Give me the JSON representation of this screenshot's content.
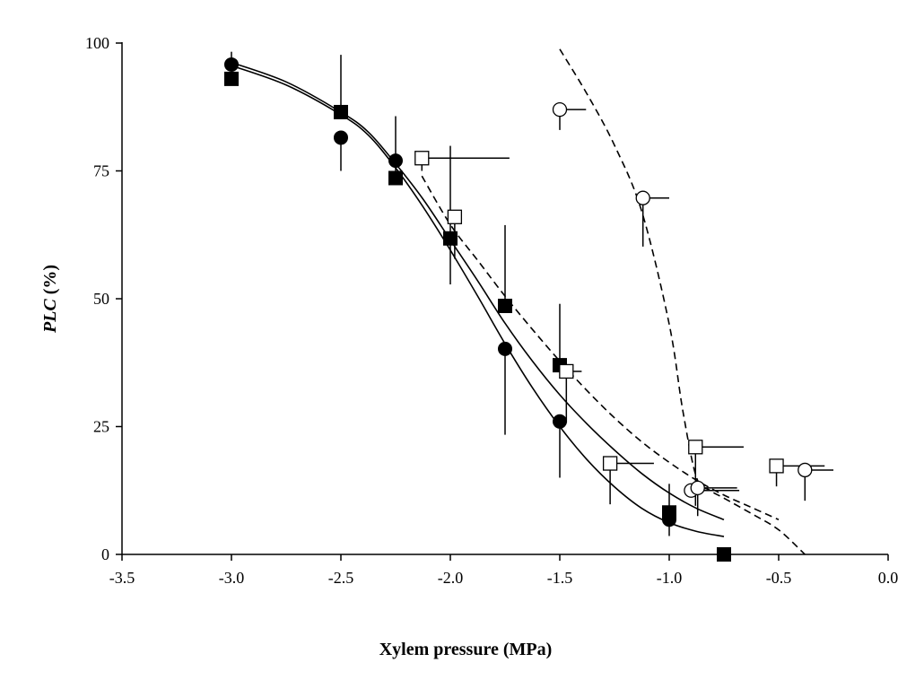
{
  "chart_data": {
    "type": "scatter",
    "title": "",
    "xlabel": "Xylem pressure (MPa)",
    "ylabel_italic": "PLC",
    "ylabel_rest": " (%)",
    "xlim": [
      -3.5,
      0.0
    ],
    "ylim": [
      0,
      100
    ],
    "xticks": [
      -3.5,
      -3.0,
      -2.5,
      -2.0,
      -1.5,
      -1.0,
      -0.5,
      0.0
    ],
    "xtick_labels": [
      "-3.5",
      "-3.0",
      "-2.5",
      "-2.0",
      "-1.5",
      "-1.0",
      "-0.5",
      "0.0"
    ],
    "yticks": [
      0,
      25,
      50,
      75,
      100
    ],
    "ytick_labels": [
      "0",
      "25",
      "50",
      "75",
      "100"
    ],
    "grid": false,
    "legend": "none",
    "series": [
      {
        "marker": "filled-circle",
        "points": [
          {
            "x": -3.0,
            "y": 95.8,
            "yerr_up": 2.5
          },
          {
            "x": -2.5,
            "y": 81.5,
            "yerr_down": 6.5
          },
          {
            "x": -2.25,
            "y": 77.0
          },
          {
            "x": -1.75,
            "y": 40.2,
            "yerr_down": 16.8
          },
          {
            "x": -1.5,
            "y": 26.0,
            "yerr_down": 11.0
          },
          {
            "x": -1.0,
            "y": 6.8,
            "yerr_down": 3.2
          }
        ]
      },
      {
        "marker": "filled-square",
        "points": [
          {
            "x": -3.0,
            "y": 93.0
          },
          {
            "x": -2.5,
            "y": 86.5,
            "yerr_up": 11.2
          },
          {
            "x": -2.25,
            "y": 73.6,
            "yerr_up": 12.1
          },
          {
            "x": -2.0,
            "y": 61.8,
            "yerr_up": 18.1,
            "yerr_down": 9.0
          },
          {
            "x": -1.75,
            "y": 48.6,
            "yerr_up": 15.8
          },
          {
            "x": -1.5,
            "y": 37.0,
            "yerr_up": 12.0
          },
          {
            "x": -1.0,
            "y": 8.2,
            "yerr_up": 5.6
          },
          {
            "x": -0.75,
            "y": 0.0
          }
        ]
      },
      {
        "marker": "open-square",
        "points": [
          {
            "x": -2.13,
            "y": 77.5,
            "xerr_right": 0.4,
            "yerr_down": 2.5
          },
          {
            "x": -1.98,
            "y": 66.0,
            "yerr_down": 8.2
          },
          {
            "x": -1.47,
            "y": 35.8,
            "xerr_right": 0.07,
            "yerr_down": 10.0
          },
          {
            "x": -1.27,
            "y": 17.8,
            "xerr_right": 0.2,
            "yerr_down": 8.0
          },
          {
            "x": -0.88,
            "y": 21.0,
            "xerr_right": 0.22,
            "yerr_down": 11.5
          },
          {
            "x": -0.51,
            "y": 17.3,
            "xerr_right": 0.22,
            "yerr_down": 4.0
          }
        ]
      },
      {
        "marker": "open-circle",
        "points": [
          {
            "x": -1.5,
            "y": 87.0,
            "xerr_right": 0.12,
            "yerr_down": 4.0
          },
          {
            "x": -1.12,
            "y": 69.7,
            "xerr_right": 0.12,
            "yerr_down": 9.5
          },
          {
            "x": -0.9,
            "y": 12.5,
            "xerr_right": 0.22
          },
          {
            "x": -0.87,
            "y": 13.0,
            "xerr_right": 0.18,
            "yerr_down": 5.5
          },
          {
            "x": -0.38,
            "y": 16.5,
            "xerr_right": 0.13,
            "yerr_down": 6.0
          }
        ]
      }
    ],
    "fitted_curves": [
      {
        "style": "solid",
        "points": [
          [
            -3.0,
            95.6
          ],
          [
            -2.75,
            91.8
          ],
          [
            -2.5,
            86.0
          ],
          [
            -2.375,
            82.0
          ],
          [
            -2.25,
            75.6
          ],
          [
            -2.125,
            68.0
          ],
          [
            -2.0,
            59.5
          ],
          [
            -1.875,
            50.5
          ],
          [
            -1.75,
            41.2
          ],
          [
            -1.625,
            32.6
          ],
          [
            -1.5,
            25.0
          ],
          [
            -1.375,
            18.5
          ],
          [
            -1.25,
            13.2
          ],
          [
            -1.125,
            9.0
          ],
          [
            -1.0,
            6.2
          ],
          [
            -0.875,
            4.5
          ],
          [
            -0.75,
            3.5
          ]
        ]
      },
      {
        "style": "solid",
        "points": [
          [
            -3.0,
            96.2
          ],
          [
            -2.75,
            92.4
          ],
          [
            -2.5,
            86.5
          ],
          [
            -2.375,
            82.6
          ],
          [
            -2.25,
            76.4
          ],
          [
            -2.125,
            69.5
          ],
          [
            -2.0,
            61.5
          ],
          [
            -1.875,
            53.5
          ],
          [
            -1.75,
            45.2
          ],
          [
            -1.625,
            37.8
          ],
          [
            -1.5,
            31.2
          ],
          [
            -1.375,
            25.5
          ],
          [
            -1.25,
            20.4
          ],
          [
            -1.125,
            15.8
          ],
          [
            -1.0,
            12.0
          ],
          [
            -0.875,
            9.0
          ],
          [
            -0.75,
            6.8
          ]
        ]
      },
      {
        "style": "dashed",
        "points": [
          [
            -2.13,
            74.0
          ],
          [
            -2.0,
            64.5
          ],
          [
            -1.875,
            57.5
          ],
          [
            -1.75,
            50.5
          ],
          [
            -1.625,
            44.0
          ],
          [
            -1.5,
            37.8
          ],
          [
            -1.375,
            32.0
          ],
          [
            -1.25,
            26.7
          ],
          [
            -1.125,
            22.0
          ],
          [
            -1.0,
            18.0
          ],
          [
            -0.875,
            14.5
          ],
          [
            -0.75,
            11.6
          ],
          [
            -0.625,
            9.2
          ],
          [
            -0.5,
            6.8
          ]
        ]
      },
      {
        "style": "dashed",
        "points": [
          [
            -1.5,
            98.8
          ],
          [
            -1.375,
            90.0
          ],
          [
            -1.25,
            80.0
          ],
          [
            -1.125,
            67.0
          ],
          [
            -1.0,
            45.0
          ],
          [
            -0.9375,
            28.0
          ],
          [
            -0.875,
            15.0
          ],
          [
            -0.8125,
            12.5
          ],
          [
            -0.75,
            11.0
          ],
          [
            -0.625,
            8.0
          ],
          [
            -0.5,
            4.8
          ],
          [
            -0.38,
            0.0
          ]
        ]
      }
    ]
  }
}
